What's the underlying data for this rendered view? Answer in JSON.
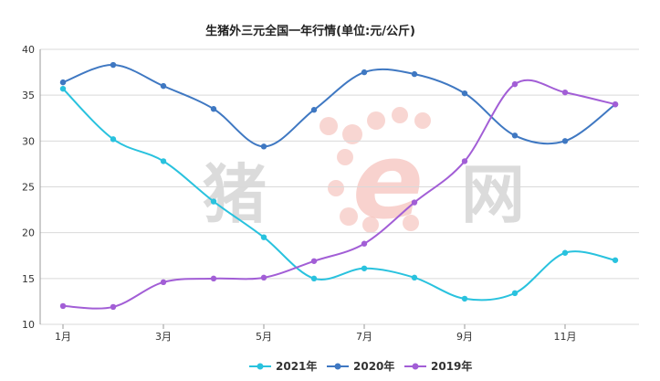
{
  "chart_data": {
    "type": "line",
    "title": "生猪外三元全国一年行情(单位:元/公斤)",
    "x": [
      1,
      2,
      3,
      4,
      5,
      6,
      7,
      8,
      9,
      10,
      11,
      12
    ],
    "x_tick_values": [
      1,
      3,
      5,
      7,
      9,
      11
    ],
    "x_tick_labels": [
      "1月",
      "3月",
      "5月",
      "7月",
      "9月",
      "11月"
    ],
    "ylim": [
      10,
      40
    ],
    "y_ticks": [
      10,
      15,
      20,
      25,
      30,
      35,
      40
    ],
    "grid": "horizontal",
    "legend_position": "bottom",
    "series": [
      {
        "name": "2021年",
        "color": "#29c2de",
        "values": [
          35.7,
          30.2,
          27.8,
          23.4,
          19.5,
          15.0,
          16.1,
          15.1,
          12.8,
          13.4,
          17.8,
          17.0
        ]
      },
      {
        "name": "2020年",
        "color": "#3f78c2",
        "values": [
          36.4,
          38.3,
          36.0,
          33.5,
          29.4,
          33.4,
          37.5,
          37.3,
          35.2,
          30.6,
          30.0,
          34.0
        ]
      },
      {
        "name": "2019年",
        "color": "#a25ed6",
        "values": [
          12.0,
          11.9,
          14.6,
          15.0,
          15.1,
          16.9,
          18.8,
          23.3,
          27.8,
          36.2,
          35.3,
          34.0
        ]
      }
    ]
  },
  "watermark": {
    "left_text": "猪",
    "letter": "e",
    "right_text": "网",
    "colors": {
      "text": "#c8c8c8",
      "letter": "#f4b5ae"
    }
  }
}
